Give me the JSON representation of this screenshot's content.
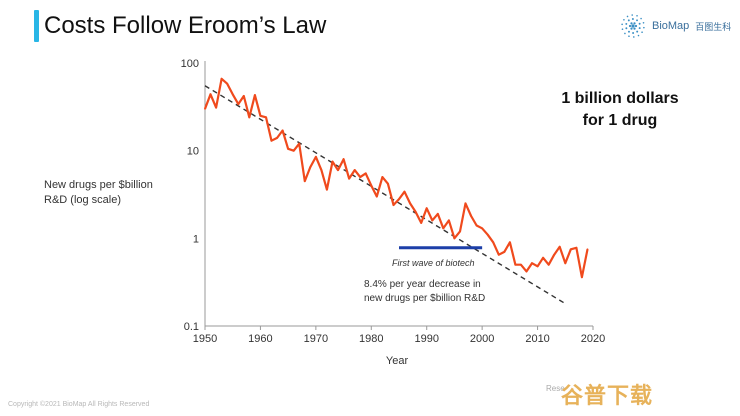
{
  "slide": {
    "title": "Costs Follow Eroom’s Law",
    "accent_color": "#29b6e6",
    "brand_name": "BioMap",
    "brand_cn": "百图生科",
    "brand_icon": "biomap-sunburst-logo",
    "callout_line1": "1 billion dollars",
    "callout_line2": "for 1 drug",
    "footer": "Copyright ©2021 BioMap All Rights Reserved",
    "credit_text": "Rese",
    "watermark_text": "谷普下载"
  },
  "chart_data": {
    "type": "line",
    "xlabel": "Year",
    "ylabel_line1": "New drugs per $billion",
    "ylabel_line2": "R&D (log scale)",
    "xlim": [
      1950,
      2020
    ],
    "ylim": [
      0.1,
      100
    ],
    "yscale": "log",
    "x_ticks": [
      1950,
      1960,
      1970,
      1980,
      1990,
      2000,
      2010,
      2020
    ],
    "y_ticks": [
      {
        "value": 100,
        "label": "100"
      },
      {
        "value": 10,
        "label": "10"
      },
      {
        "value": 1,
        "label": "1"
      },
      {
        "value": 0.1,
        "label": "0.1"
      }
    ],
    "grid": false,
    "series": [
      {
        "color": "#f04a1d",
        "points": [
          [
            1950,
            30
          ],
          [
            1951,
            44
          ],
          [
            1952,
            31
          ],
          [
            1953,
            66
          ],
          [
            1954,
            58
          ],
          [
            1955,
            44
          ],
          [
            1956,
            34
          ],
          [
            1957,
            42
          ],
          [
            1958,
            24
          ],
          [
            1959,
            43
          ],
          [
            1960,
            25
          ],
          [
            1961,
            24
          ],
          [
            1962,
            13
          ],
          [
            1963,
            14
          ],
          [
            1964,
            17
          ],
          [
            1965,
            10.5
          ],
          [
            1966,
            10
          ],
          [
            1967,
            12
          ],
          [
            1968,
            4.5
          ],
          [
            1969,
            6.5
          ],
          [
            1970,
            8.5
          ],
          [
            1971,
            6
          ],
          [
            1972,
            3.6
          ],
          [
            1973,
            7.5
          ],
          [
            1974,
            6
          ],
          [
            1975,
            8
          ],
          [
            1976,
            4.8
          ],
          [
            1977,
            6
          ],
          [
            1978,
            5
          ],
          [
            1979,
            5.5
          ],
          [
            1980,
            4
          ],
          [
            1981,
            3
          ],
          [
            1982,
            5
          ],
          [
            1983,
            4.2
          ],
          [
            1984,
            2.4
          ],
          [
            1985,
            2.8
          ],
          [
            1986,
            3.4
          ],
          [
            1987,
            2.5
          ],
          [
            1988,
            2
          ],
          [
            1989,
            1.5
          ],
          [
            1990,
            2.2
          ],
          [
            1991,
            1.6
          ],
          [
            1992,
            1.9
          ],
          [
            1993,
            1.3
          ],
          [
            1994,
            1.6
          ],
          [
            1995,
            1
          ],
          [
            1996,
            1.2
          ],
          [
            1997,
            2.5
          ],
          [
            1998,
            1.8
          ],
          [
            1999,
            1.4
          ],
          [
            2000,
            1.3
          ],
          [
            2001,
            1.1
          ],
          [
            2002,
            0.9
          ],
          [
            2003,
            0.65
          ],
          [
            2004,
            0.7
          ],
          [
            2005,
            0.9
          ],
          [
            2006,
            0.5
          ],
          [
            2007,
            0.5
          ],
          [
            2008,
            0.42
          ],
          [
            2009,
            0.52
          ],
          [
            2010,
            0.48
          ],
          [
            2011,
            0.6
          ],
          [
            2012,
            0.5
          ],
          [
            2013,
            0.65
          ],
          [
            2014,
            0.8
          ],
          [
            2015,
            0.52
          ],
          [
            2016,
            0.75
          ],
          [
            2017,
            0.78
          ],
          [
            2018,
            0.36
          ],
          [
            2019,
            0.75
          ]
        ]
      }
    ],
    "trend_line": {
      "color": "#333333",
      "style": "dashed",
      "points": [
        [
          1950,
          55
        ],
        [
          2015,
          0.18
        ]
      ]
    },
    "annotations": [
      {
        "text": "First wave of biotech",
        "x_range": [
          1985,
          2000
        ],
        "y": 0.78,
        "color": "#1c3fa8"
      },
      {
        "line1": "8.4% per year decrease in",
        "line2": "new drugs per $billion R&D"
      }
    ]
  }
}
